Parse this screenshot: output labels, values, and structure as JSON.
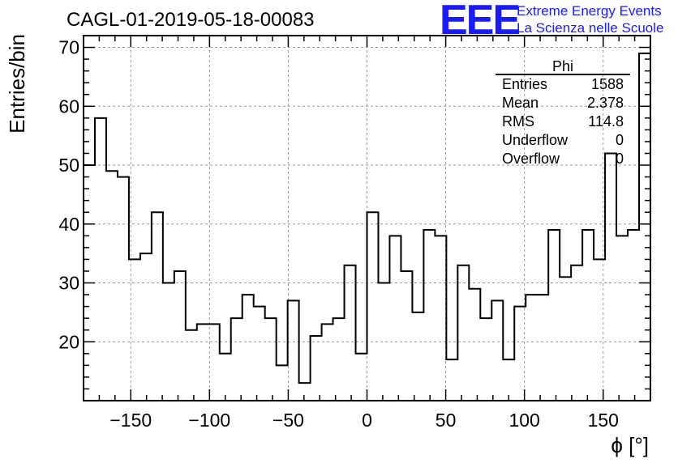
{
  "logo": {
    "mark": "EEE",
    "line1": "Extreme Energy Events",
    "line2": "La Scienza nelle Scuole"
  },
  "chart_data": {
    "type": "histogram",
    "title": "CAGL-01-2019-05-18-00083",
    "xlabel": "ϕ [°]",
    "ylabel": "Entries/bin",
    "xlim": [
      -180,
      180
    ],
    "ylim": [
      10,
      72
    ],
    "xticks": [
      -150,
      -100,
      -50,
      0,
      50,
      100,
      150
    ],
    "xtick_labels": [
      "−150",
      "−100",
      "−50",
      "0",
      "50",
      "100",
      "150"
    ],
    "yticks": [
      20,
      30,
      40,
      50,
      60,
      70
    ],
    "ytick_labels": [
      "20",
      "30",
      "40",
      "50",
      "60",
      "70"
    ],
    "grid": true,
    "bin_width": 7.2,
    "bin_start": -180,
    "values": [
      50,
      58,
      49,
      48,
      34,
      35,
      42,
      30,
      32,
      22,
      23,
      23,
      18,
      24,
      28,
      26,
      24,
      16,
      27,
      13,
      21,
      23,
      24,
      33,
      18,
      42,
      30,
      38,
      32,
      25,
      39,
      38,
      17,
      33,
      29,
      24,
      27,
      17,
      26,
      28,
      28,
      39,
      31,
      33,
      39,
      34,
      52,
      38,
      39,
      69
    ],
    "line_color": "#000000"
  },
  "stats": {
    "name": "Phi",
    "rows": [
      {
        "label": "Entries",
        "value": "1588"
      },
      {
        "label": "Mean",
        "value": "2.378"
      },
      {
        "label": "RMS",
        "value": "114.8"
      },
      {
        "label": "Underflow",
        "value": "0"
      },
      {
        "label": "Overflow",
        "value": "0"
      }
    ]
  }
}
